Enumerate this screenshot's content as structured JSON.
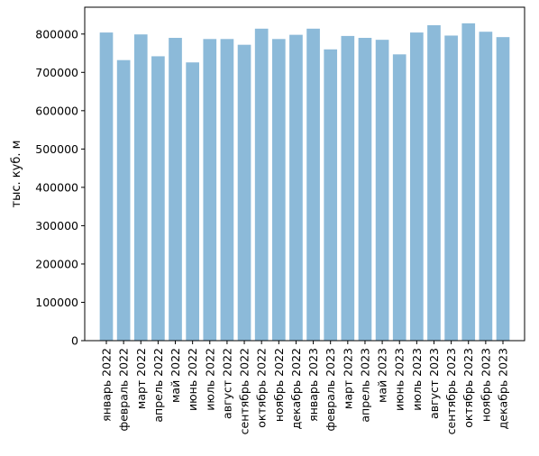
{
  "chart_data": {
    "type": "bar",
    "title": "",
    "xlabel": "",
    "ylabel": "тыс. куб. м",
    "ylim": [
      0,
      870000
    ],
    "yticks": [
      0,
      100000,
      200000,
      300000,
      400000,
      500000,
      600000,
      700000,
      800000
    ],
    "ytick_labels": [
      "0",
      "100000",
      "200000",
      "300000",
      "400000",
      "500000",
      "600000",
      "700000",
      "800000"
    ],
    "grid": false,
    "bar_color": "#8cbad9",
    "categories": [
      "январь 2022",
      "февраль 2022",
      "март 2022",
      "апрель 2022",
      "май 2022",
      "июнь 2022",
      "июль 2022",
      "август 2022",
      "сентябрь 2022",
      "октябрь 2022",
      "ноябрь 2022",
      "декабрь 2022",
      "январь 2023",
      "февраль 2023",
      "март 2023",
      "апрель 2023",
      "май 2023",
      "июнь 2023",
      "июль 2023",
      "август 2023",
      "сентябрь 2023",
      "октябрь 2023",
      "ноябрь 2023",
      "декабрь 2023"
    ],
    "values": [
      804000,
      732000,
      799000,
      742000,
      790000,
      726000,
      787000,
      787000,
      772000,
      814000,
      787000,
      798000,
      814000,
      760000,
      795000,
      790000,
      785000,
      747000,
      804000,
      823000,
      796000,
      828000,
      806000,
      792000
    ]
  }
}
